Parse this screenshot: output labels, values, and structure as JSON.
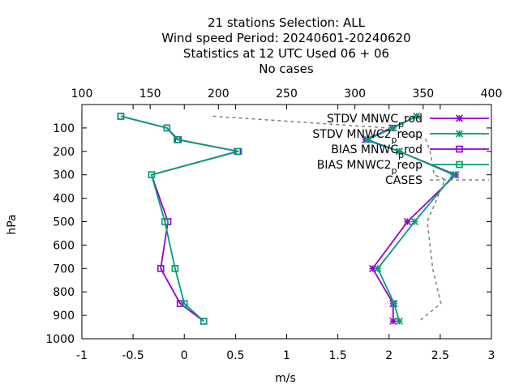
{
  "title": {
    "line1": "21 stations Selection: ALL",
    "line2": "Wind speed  Period: 20240601-20240620",
    "line3": "Statistics at 12 UTC  Used  06 + 06",
    "line4": "No cases"
  },
  "chart_data": {
    "type": "line",
    "xlabel": "m/s",
    "ylabel": "hPa",
    "x_axis": {
      "range": [
        -1,
        3
      ],
      "ticks": [
        "-1",
        "-0.5",
        "0",
        "0.5",
        "1",
        "1.5",
        "2",
        "2.5",
        "3"
      ],
      "tick_values": [
        -1,
        -0.5,
        0,
        0.5,
        1,
        1.5,
        2,
        2.5,
        3
      ]
    },
    "x2_axis": {
      "range": [
        100,
        400
      ],
      "ticks": [
        "100",
        "150",
        "200",
        "250",
        "300",
        "350",
        "400"
      ],
      "tick_values": [
        100,
        150,
        200,
        250,
        300,
        350,
        400
      ]
    },
    "y_axis": {
      "range": [
        1000,
        0
      ],
      "reversed": true,
      "ticks": [
        "100",
        "200",
        "300",
        "400",
        "500",
        "600",
        "700",
        "800",
        "900",
        "1000"
      ],
      "tick_values": [
        100,
        200,
        300,
        400,
        500,
        600,
        700,
        800,
        900,
        1000
      ]
    },
    "grid": false,
    "legend_placement": "top-right",
    "series": [
      {
        "name": "STDV MNWC_prod",
        "legend_main": "STDV MNWC",
        "legend_sub": "p",
        "legend_tail": "rod",
        "color": "#9400d3",
        "marker": "x-star",
        "axis": "x",
        "points": [
          [
            2.27,
            50
          ],
          [
            2.03,
            100
          ],
          [
            1.77,
            150
          ],
          [
            2.1,
            200
          ],
          [
            2.65,
            300
          ],
          [
            2.18,
            500
          ],
          [
            1.84,
            700
          ],
          [
            2.04,
            850
          ],
          [
            2.04,
            925
          ]
        ]
      },
      {
        "name": "STDV MNWC2_preop",
        "legend_main": "STDV MNWC2",
        "legend_sub": "p",
        "legend_tail": "reop",
        "color": "#009e73",
        "marker": "x-star",
        "axis": "x",
        "points": [
          [
            2.27,
            50
          ],
          [
            2.04,
            100
          ],
          [
            1.79,
            150
          ],
          [
            2.1,
            200
          ],
          [
            2.63,
            300
          ],
          [
            2.25,
            500
          ],
          [
            1.89,
            700
          ],
          [
            2.05,
            850
          ],
          [
            2.1,
            925
          ]
        ]
      },
      {
        "name": "BIAS MNWC_prod",
        "legend_main": "BIAS MNWC",
        "legend_sub": "p",
        "legend_tail": "rod",
        "color": "#9400d3",
        "marker": "square",
        "axis": "x",
        "points": [
          [
            -0.62,
            50
          ],
          [
            -0.17,
            100
          ],
          [
            -0.06,
            150
          ],
          [
            0.52,
            200
          ],
          [
            -0.32,
            300
          ],
          [
            -0.16,
            500
          ],
          [
            -0.23,
            700
          ],
          [
            -0.04,
            850
          ],
          [
            0.19,
            925
          ]
        ]
      },
      {
        "name": "BIAS MNWC2_preop",
        "legend_main": "BIAS MNWC2",
        "legend_sub": "p",
        "legend_tail": "reop",
        "color": "#009e73",
        "marker": "square",
        "axis": "x",
        "points": [
          [
            -0.62,
            50
          ],
          [
            -0.17,
            100
          ],
          [
            -0.07,
            150
          ],
          [
            0.53,
            200
          ],
          [
            -0.32,
            300
          ],
          [
            -0.19,
            500
          ],
          [
            -0.09,
            700
          ],
          [
            0.0,
            850
          ],
          [
            0.19,
            925
          ]
        ]
      },
      {
        "name": "CASES",
        "legend_main": "CASES",
        "legend_sub": "",
        "legend_tail": "",
        "color": "#808080",
        "marker": "none",
        "dashed": true,
        "axis": "x2",
        "points": [
          [
            196,
            50
          ],
          [
            324,
            100
          ],
          [
            352,
            150
          ],
          [
            355,
            200
          ],
          [
            358,
            300
          ],
          [
            366,
            320
          ],
          [
            353,
            500
          ],
          [
            357,
            700
          ],
          [
            363,
            850
          ],
          [
            347,
            925
          ]
        ]
      }
    ]
  }
}
